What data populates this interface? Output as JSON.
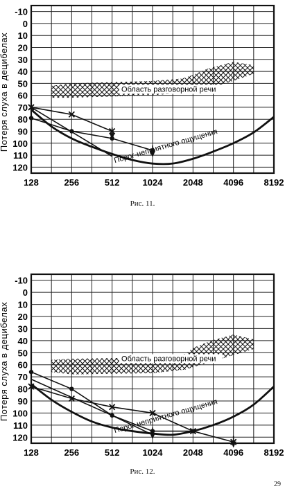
{
  "page_number": "29",
  "figures": [
    {
      "caption": "Рис. 11.",
      "ylabel": "Потеря слуха в децибелах",
      "y_ticks": [
        "-10",
        "0",
        "10",
        "20",
        "30",
        "40",
        "50",
        "60",
        "70",
        "80",
        "90",
        "100",
        "110",
        "120"
      ],
      "x_ticks": [
        "128",
        "256",
        "512",
        "1024",
        "2048",
        "4096",
        "8192"
      ],
      "speech_label": "Область разговорной речи",
      "threshold_label": "Порог-неприятного ощущения",
      "chart_data": {
        "type": "line",
        "x_scale": "log2",
        "x_range": [
          128,
          8192
        ],
        "y_range": [
          -15,
          125
        ],
        "y_inverted": true,
        "grid": true,
        "speech_area": {
          "lower": [
            [
              180,
              62
            ],
            [
              256,
              62
            ],
            [
              1024,
              60
            ],
            [
              1700,
              58
            ],
            [
              2048,
              58
            ],
            [
              4096,
              48
            ],
            [
              5800,
              42
            ]
          ],
          "upper": [
            [
              180,
              52
            ],
            [
              256,
              50
            ],
            [
              1024,
              48
            ],
            [
              1700,
              46
            ],
            [
              2048,
              43
            ],
            [
              2600,
              38
            ],
            [
              4096,
              32
            ],
            [
              5800,
              35
            ]
          ]
        },
        "discomfort_curve": [
          [
            128,
            72
          ],
          [
            181,
            86
          ],
          [
            256,
            96
          ],
          [
            362,
            103
          ],
          [
            512,
            109
          ],
          [
            724,
            114
          ],
          [
            1024,
            117
          ],
          [
            1448,
            117
          ],
          [
            2048,
            113
          ],
          [
            2896,
            107
          ],
          [
            4096,
            100
          ],
          [
            5793,
            91
          ],
          [
            8192,
            78
          ]
        ],
        "series": [
          {
            "marker": "x",
            "points": [
              [
                128,
                70
              ],
              [
                256,
                76
              ],
              [
                512,
                90
              ]
            ]
          },
          {
            "marker": "dot",
            "points": [
              [
                128,
                79
              ],
              [
                256,
                90
              ],
              [
                512,
                96
              ],
              [
                1024,
                106
              ]
            ]
          },
          {
            "marker": "none",
            "points": [
              [
                128,
                70
              ],
              [
                512,
                111
              ]
            ]
          }
        ],
        "arrows": [
          [
            512,
            95
          ],
          [
            1024,
            110
          ]
        ]
      }
    },
    {
      "caption": "Рис. 12.",
      "ylabel": "Потеря слуха в децибелах",
      "y_ticks": [
        "-10",
        "0",
        "10",
        "20",
        "30",
        "40",
        "50",
        "60",
        "70",
        "80",
        "90",
        "100",
        "110",
        "120"
      ],
      "x_ticks": [
        "128",
        "256",
        "512",
        "1024",
        "2048",
        "4096",
        "8192"
      ],
      "speech_label": "Область разговорной речи",
      "threshold_label": "Порог-неприятного ощущения",
      "chart_data": {
        "type": "line",
        "x_scale": "log2",
        "x_range": [
          128,
          8192
        ],
        "y_range": [
          -15,
          125
        ],
        "y_inverted": true,
        "grid": true,
        "speech_area": {
          "lower": [
            [
              180,
              66
            ],
            [
              256,
              68
            ],
            [
              1024,
              67
            ],
            [
              1800,
              64
            ],
            [
              2048,
              62
            ],
            [
              4096,
              52
            ],
            [
              5800,
              47
            ]
          ],
          "upper": [
            [
              180,
              56
            ],
            [
              256,
              55
            ],
            [
              1024,
              54
            ],
            [
              1800,
              51
            ],
            [
              2048,
              46
            ],
            [
              2800,
              40
            ],
            [
              4096,
              35
            ],
            [
              5800,
              39
            ]
          ]
        },
        "discomfort_curve": [
          [
            128,
            76
          ],
          [
            181,
            89
          ],
          [
            256,
            99
          ],
          [
            362,
            107
          ],
          [
            512,
            112
          ],
          [
            724,
            115
          ],
          [
            1024,
            117
          ],
          [
            1448,
            118
          ],
          [
            2048,
            115
          ],
          [
            2896,
            110
          ],
          [
            4096,
            103
          ],
          [
            5793,
            93
          ],
          [
            8192,
            78
          ]
        ],
        "series": [
          {
            "marker": "x",
            "points": [
              [
                128,
                78
              ],
              [
                256,
                88
              ],
              [
                512,
                95
              ],
              [
                1024,
                100
              ],
              [
                2048,
                115
              ],
              [
                4096,
                124
              ]
            ]
          },
          {
            "marker": "dot",
            "points": [
              [
                128,
                66
              ],
              [
                256,
                80
              ],
              [
                512,
                102
              ],
              [
                1024,
                115
              ],
              [
                2048,
                115
              ]
            ]
          },
          {
            "marker": "none",
            "points": [
              [
                128,
                72
              ],
              [
                512,
                102
              ],
              [
                1024,
                118
              ]
            ]
          }
        ],
        "arrows": [
          [
            1024,
            120
          ],
          [
            4096,
            127
          ]
        ]
      }
    }
  ]
}
